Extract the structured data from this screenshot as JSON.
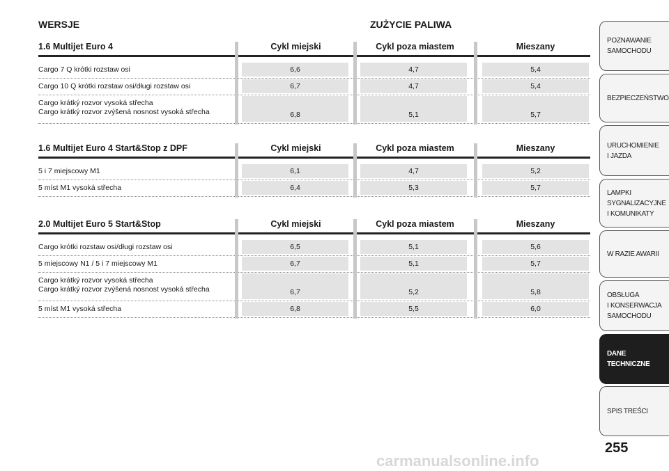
{
  "header": {
    "left": "WERSJE",
    "right": "ZUŻYCIE PALIWA"
  },
  "sections": [
    {
      "title": "1.6 Multijet Euro 4",
      "columns": [
        "Cykl miejski",
        "Cykl poza miastem",
        "Mieszany"
      ],
      "rows": [
        {
          "label": [
            "Cargo 7 Q krótki rozstaw osi"
          ],
          "values": [
            "6,6",
            "4,7",
            "5,4"
          ]
        },
        {
          "label": [
            "Cargo 10 Q krótki rozstaw osi/długi rozstaw osi"
          ],
          "values": [
            "6,7",
            "4,7",
            "5,4"
          ]
        },
        {
          "label": [
            "Cargo krátký rozvor vysoká střecha",
            "Cargo krátký rozvor zvýšená nosnost vysoká střecha"
          ],
          "values": [
            "6,8",
            "5,1",
            "5,7"
          ]
        }
      ]
    },
    {
      "title": "1.6 Multijet Euro 4 Start&Stop z DPF",
      "columns": [
        "Cykl miejski",
        "Cykl poza miastem",
        "Mieszany"
      ],
      "rows": [
        {
          "label": [
            "5 i 7 miejscowy M1"
          ],
          "values": [
            "6,1",
            "4,7",
            "5,2"
          ]
        },
        {
          "label": [
            "5 míst M1 vysoká střecha"
          ],
          "values": [
            "6,4",
            "5,3",
            "5,7"
          ]
        }
      ]
    },
    {
      "title": "2.0 Multijet Euro 5 Start&Stop",
      "columns": [
        "Cykl miejski",
        "Cykl poza miastem",
        "Mieszany"
      ],
      "rows": [
        {
          "label": [
            "Cargo krótki rozstaw osi/długi rozstaw osi"
          ],
          "values": [
            "6,5",
            "5,1",
            "5,6"
          ]
        },
        {
          "label": [
            "5 miejscowy N1 / 5 i 7 miejscowy M1"
          ],
          "values": [
            "6,7",
            "5,1",
            "5,7"
          ]
        },
        {
          "label": [
            "Cargo krátký rozvor vysoká střecha",
            "Cargo krátký rozvor zvýšená nosnost vysoká střecha"
          ],
          "values": [
            "6,7",
            "5,2",
            "5,8"
          ]
        },
        {
          "label": [
            "5 míst M1 vysoká střecha"
          ],
          "values": [
            "6,8",
            "5,5",
            "6,0"
          ]
        }
      ]
    }
  ],
  "tabs": [
    {
      "label": [
        "POZNAWANIE",
        "SAMOCHODU"
      ]
    },
    {
      "label": [
        "BEZPIECZEŃSTWO"
      ]
    },
    {
      "label": [
        "URUCHOMIENIE",
        "I JAZDA"
      ]
    },
    {
      "label": [
        "LAMPKI",
        "SYGNALIZACYJNE",
        "I KOMUNIKATY"
      ]
    },
    {
      "label": [
        "W RAZIE AWARII"
      ]
    },
    {
      "label": [
        "OBSŁUGA",
        "I KONSERWACJA",
        "SAMOCHODU"
      ]
    },
    {
      "label": [
        "DANE",
        "TECHNICZNE"
      ],
      "active": true
    },
    {
      "label": [
        "SPIS TREŚCI"
      ]
    }
  ],
  "page_number": "255",
  "watermark": "carmanualsonline.info"
}
